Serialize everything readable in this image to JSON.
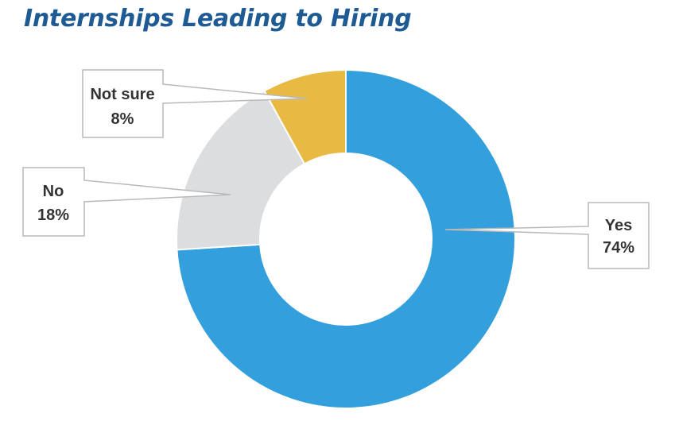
{
  "chart_data": {
    "type": "pie",
    "title": "Internships Leading to Hiring",
    "slices": [
      {
        "label": "Yes",
        "value": 74,
        "value_label": "74%",
        "color": "#339fdc"
      },
      {
        "label": "No",
        "value": 18,
        "value_label": "18%",
        "color": "#dcdddf"
      },
      {
        "label": "Not sure",
        "value": 8,
        "value_label": "8%",
        "color": "#e8ba43"
      }
    ],
    "donut": true,
    "legend": "none",
    "grid": false
  }
}
